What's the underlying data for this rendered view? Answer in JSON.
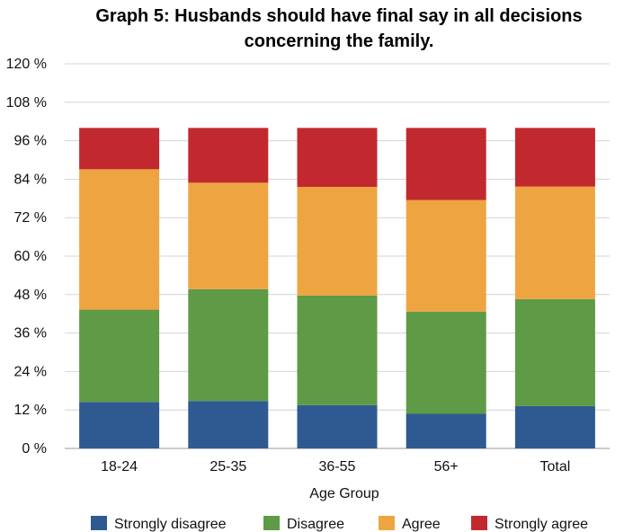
{
  "chart_data": {
    "type": "bar",
    "stacked": true,
    "title_lines": [
      "Graph 5: Husbands should have final say in all decisions",
      "concerning the family."
    ],
    "xlabel": "Age Group",
    "ylabel": "",
    "ylim": [
      0,
      120
    ],
    "ytick_step": 12,
    "ytick_suffix": " %",
    "grid": true,
    "legend_position": "bottom",
    "categories": [
      "18-24",
      "25-35",
      "36-55",
      "56+",
      "Total"
    ],
    "series": [
      {
        "name": "Strongly disagree",
        "color": "#2E5A91",
        "values": [
          14.5,
          14.8,
          13.5,
          10.8,
          13.2
        ]
      },
      {
        "name": "Disagree",
        "color": "#5F9A46",
        "values": [
          28.8,
          34.9,
          34.2,
          31.9,
          33.4
        ]
      },
      {
        "name": "Agree",
        "color": "#EEA541",
        "values": [
          43.8,
          33.2,
          33.9,
          34.8,
          35.1
        ]
      },
      {
        "name": "Strongly agree",
        "color": "#C1292E",
        "values": [
          12.9,
          17.1,
          18.4,
          22.5,
          18.3
        ]
      }
    ]
  }
}
